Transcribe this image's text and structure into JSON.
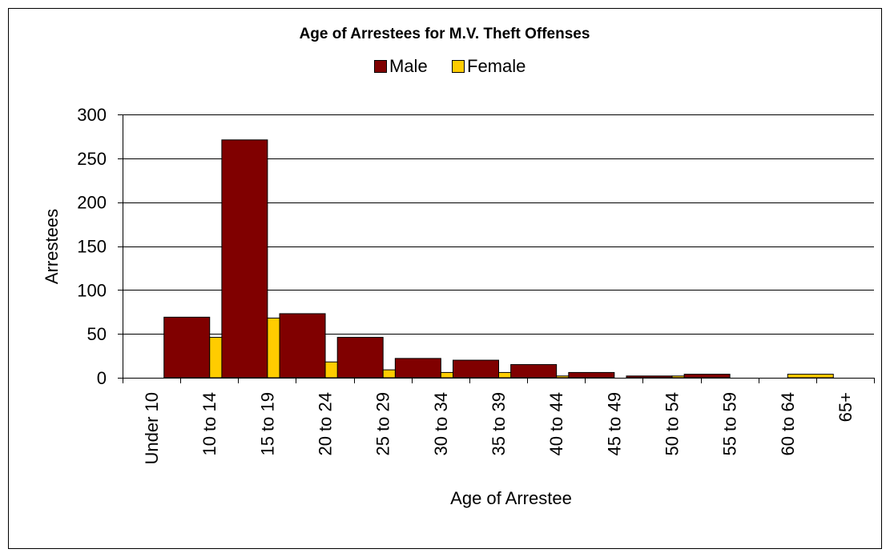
{
  "chart_data": {
    "type": "bar",
    "title": "Age of Arrestees for M.V. Theft Offenses",
    "xlabel": "Age of Arrestee",
    "ylabel": "Arrestees",
    "ylim": [
      0,
      300
    ],
    "yticks": [
      0,
      50,
      100,
      150,
      200,
      250,
      300
    ],
    "grid": true,
    "legend_position": "top-center",
    "categories": [
      "Under 10",
      "10 to 14",
      "15 to 19",
      "20 to 24",
      "25 to 29",
      "30 to 34",
      "35 to 39",
      "40 to 44",
      "45 to 49",
      "50 to 54",
      "55 to 59",
      "60 to 64",
      "65+"
    ],
    "series": [
      {
        "name": "Male",
        "color": "#800000",
        "values": [
          0,
          69,
          271,
          73,
          46,
          22,
          20,
          15,
          6,
          2,
          4,
          0,
          0
        ]
      },
      {
        "name": "Female",
        "color": "#FFCC00",
        "values": [
          0,
          46,
          68,
          18,
          9,
          6,
          6,
          2,
          0,
          2,
          0,
          4,
          0
        ]
      }
    ]
  }
}
